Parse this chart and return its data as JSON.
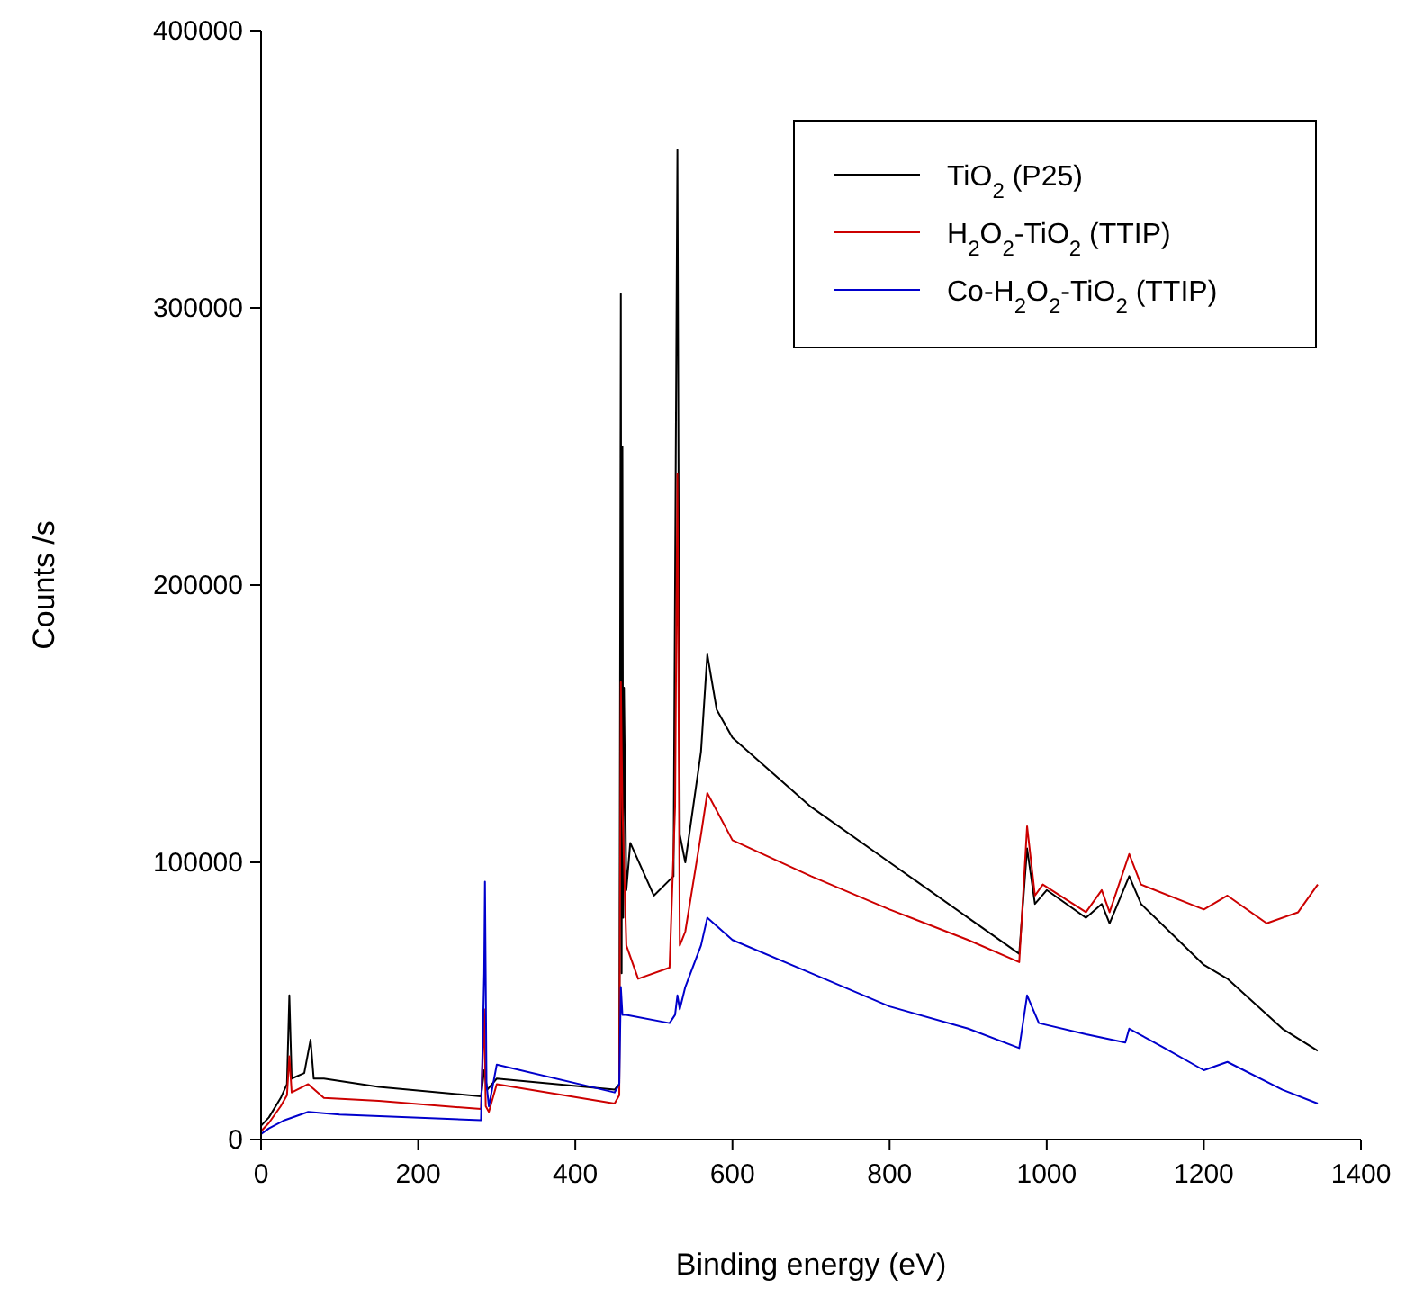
{
  "chart_data": {
    "type": "line",
    "xlabel": "Binding energy (eV)",
    "ylabel": "Counts /s",
    "xlim": [
      0,
      1400
    ],
    "xticks": [
      0,
      200,
      400,
      600,
      800,
      1000,
      1200,
      1400
    ],
    "ylim": [
      0,
      400000
    ],
    "yticks": [
      0,
      100000,
      200000,
      300000,
      400000
    ],
    "grid": false,
    "legend": "top right",
    "marker": "none",
    "line_style": "solid",
    "series": [
      {
        "name": "TiO$_{2}$ (P25)",
        "color": "#000000",
        "x": [
          0,
          10,
          25,
          33,
          36,
          39,
          55,
          63,
          67,
          80,
          150,
          280,
          284,
          288,
          300,
          450,
          456,
          458,
          459,
          460,
          461,
          462,
          465,
          470,
          500,
          525,
          530,
          533,
          540,
          560,
          568,
          580,
          600,
          700,
          800,
          900,
          965,
          975,
          985,
          1000,
          1050,
          1070,
          1080,
          1105,
          1120,
          1200,
          1230,
          1300,
          1345
        ],
        "values": [
          5000,
          8000,
          15000,
          20000,
          52000,
          22000,
          24000,
          36000,
          22000,
          22000,
          19000,
          15600,
          25000,
          18000,
          22000,
          18000,
          20000,
          305000,
          60000,
          250000,
          80000,
          163000,
          90000,
          107000,
          88000,
          95000,
          357000,
          110000,
          100000,
          140000,
          175000,
          155000,
          145000,
          120000,
          100000,
          80000,
          67000,
          105000,
          85000,
          90000,
          80000,
          85000,
          78000,
          95000,
          85000,
          63000,
          58000,
          40000,
          32000
        ]
      },
      {
        "name": "H$_{2}$O$_{2}$-TiO$_{2}$ (TTIP)",
        "color": "#cc0000",
        "x": [
          0,
          10,
          25,
          33,
          36,
          39,
          60,
          80,
          150,
          280,
          284,
          286,
          290,
          300,
          450,
          456,
          458,
          460,
          462,
          465,
          480,
          520,
          527,
          530,
          533,
          540,
          560,
          568,
          600,
          700,
          800,
          900,
          965,
          975,
          985,
          995,
          1050,
          1070,
          1080,
          1105,
          1120,
          1200,
          1230,
          1280,
          1320,
          1345
        ],
        "values": [
          3000,
          6000,
          12000,
          16000,
          30000,
          17000,
          20000,
          15000,
          14000,
          11000,
          47000,
          12000,
          10000,
          20000,
          13000,
          16000,
          165000,
          120000,
          100000,
          70000,
          58000,
          62000,
          120000,
          240000,
          70000,
          75000,
          110000,
          125000,
          108000,
          95000,
          83000,
          72000,
          64000,
          113000,
          88000,
          92000,
          82000,
          90000,
          82000,
          103000,
          92000,
          83000,
          88000,
          78000,
          82000,
          92000
        ]
      },
      {
        "name": "Co-H$_{2}$O$_{2}$-TiO$_{2}$ (TTIP)",
        "color": "#0000cc",
        "x": [
          0,
          10,
          30,
          60,
          100,
          280,
          284,
          285,
          287,
          290,
          300,
          450,
          456,
          458,
          460,
          465,
          520,
          527,
          530,
          533,
          540,
          560,
          568,
          600,
          700,
          800,
          900,
          965,
          975,
          990,
          1050,
          1100,
          1105,
          1150,
          1200,
          1230,
          1300,
          1345
        ],
        "values": [
          2000,
          4000,
          7000,
          10000,
          9000,
          7000,
          60000,
          93000,
          20000,
          12000,
          27000,
          17000,
          20000,
          55000,
          45000,
          45000,
          42000,
          45000,
          52000,
          47000,
          55000,
          70000,
          80000,
          72000,
          60000,
          48000,
          40000,
          33000,
          52000,
          42000,
          38000,
          35000,
          40000,
          33000,
          25000,
          28000,
          18000,
          13000
        ]
      }
    ]
  }
}
